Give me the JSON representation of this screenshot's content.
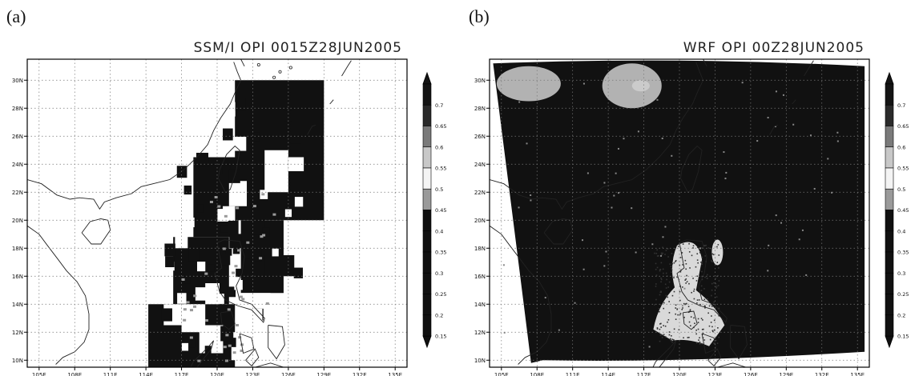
{
  "panels": [
    {
      "letter": "(a)",
      "title": "SSM/I OPI 0015Z28JUN2005",
      "style": "patchy"
    },
    {
      "letter": "(b)",
      "title": "WRF OPI 00Z28JUN2005",
      "style": "domain"
    }
  ],
  "map": {
    "lon_ticks": [
      "105E",
      "108E",
      "111E",
      "114E",
      "117E",
      "120E",
      "123E",
      "126E",
      "129E",
      "132E",
      "135E"
    ],
    "lat_ticks": [
      "10N",
      "12N",
      "14N",
      "16N",
      "18N",
      "20N",
      "22N",
      "24N",
      "26N",
      "28N",
      "30N"
    ],
    "lon_range": [
      104,
      136
    ],
    "lat_range": [
      9.5,
      31.5
    ]
  },
  "colorbar": {
    "labels": [
      "0.7",
      "0.65",
      "0.6",
      "0.55",
      "0.5",
      "0.45",
      "0.4",
      "0.35",
      "0.3",
      "0.25",
      "0.2",
      "0.15"
    ],
    "colors": [
      "#141414",
      "#2a2a2a",
      "#7a7a7a",
      "#c8c8c8",
      "#f4f4f4",
      "#9a9a9a",
      "#101010",
      "#101010",
      "#101010",
      "#101010",
      "#101010",
      "#101010"
    ]
  },
  "colors": {
    "fill_dark": "#111111",
    "coast": "#222222",
    "grid": "#777777",
    "frame": "#000000"
  }
}
